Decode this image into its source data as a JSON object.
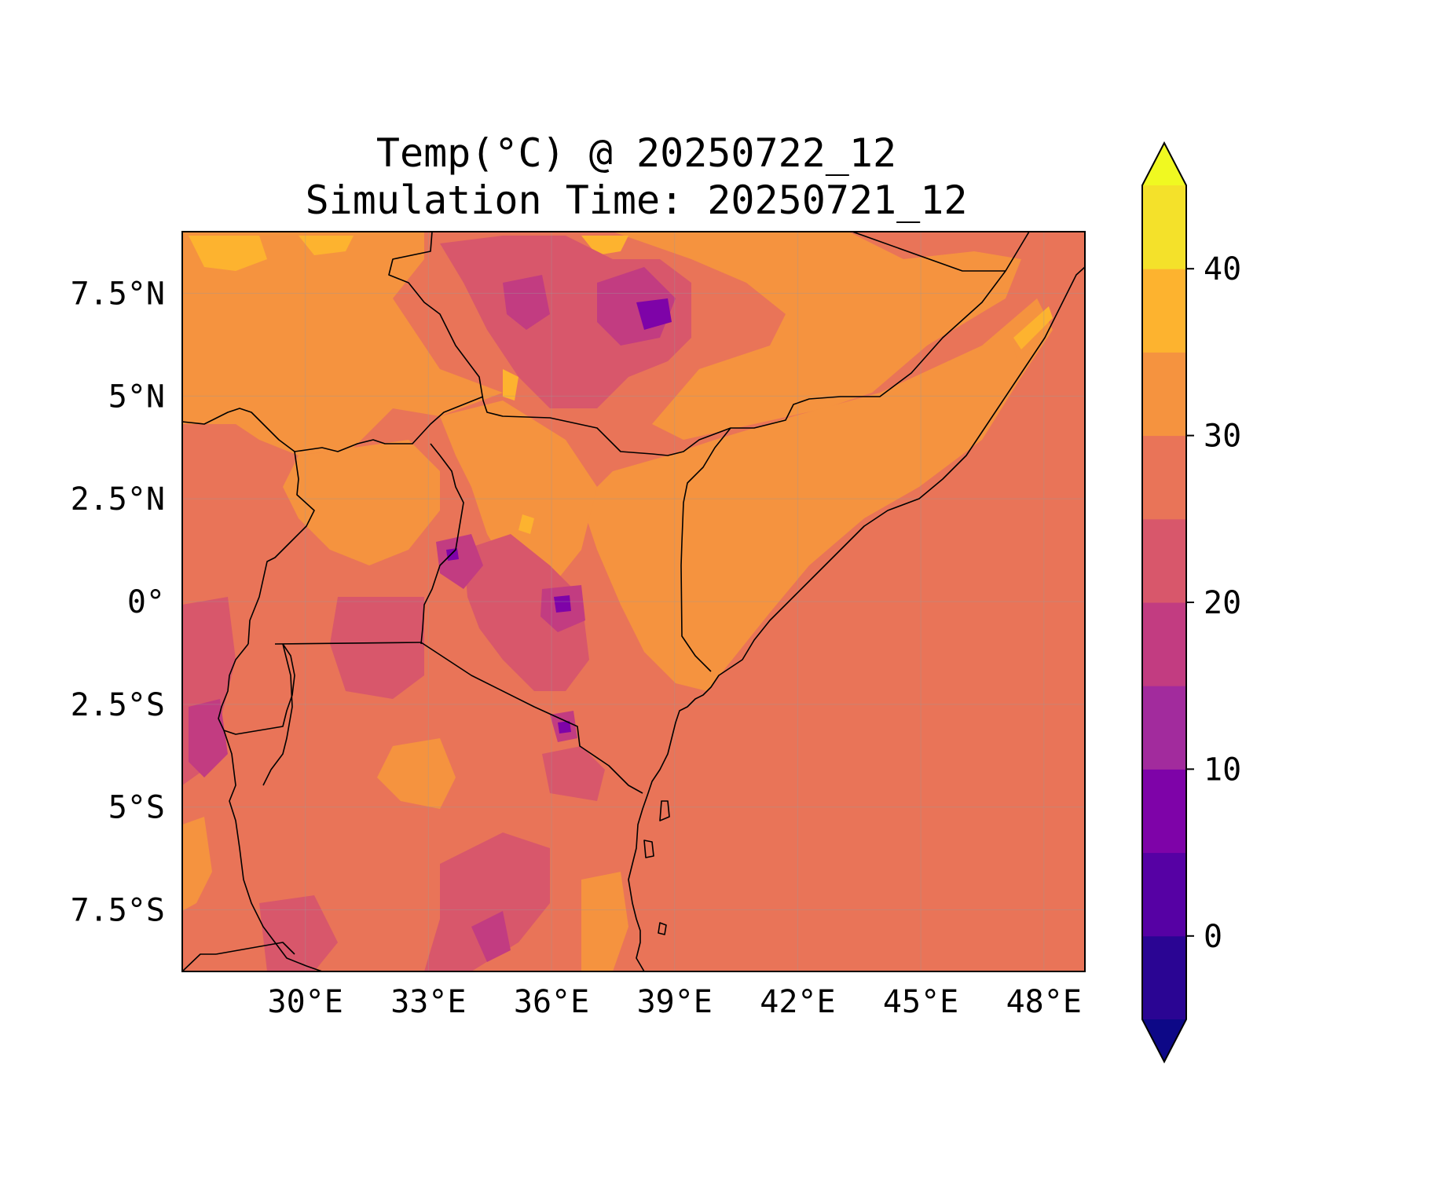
{
  "title": {
    "line1": "Temp(°C) @ 20250722_12",
    "line2": "Simulation Time: 20250721_12"
  },
  "map": {
    "extent": {
      "lon": [
        27.0,
        49.0
      ],
      "lat": [
        -9.0,
        9.0
      ]
    },
    "lon_ticks": [
      {
        "value": 30,
        "label": "30°E"
      },
      {
        "value": 33,
        "label": "33°E"
      },
      {
        "value": 36,
        "label": "36°E"
      },
      {
        "value": 39,
        "label": "39°E"
      },
      {
        "value": 42,
        "label": "42°E"
      },
      {
        "value": 45,
        "label": "45°E"
      },
      {
        "value": 48,
        "label": "48°E"
      }
    ],
    "lat_ticks": [
      {
        "value": 7.5,
        "label": "7.5°N"
      },
      {
        "value": 5,
        "label": "5°N"
      },
      {
        "value": 2.5,
        "label": "2.5°N"
      },
      {
        "value": 0,
        "label": "0°"
      },
      {
        "value": -2.5,
        "label": "2.5°S"
      },
      {
        "value": -5,
        "label": "5°S"
      },
      {
        "value": -7.5,
        "label": "7.5°S"
      }
    ],
    "gridlines": true,
    "background_level_color": "#e97458"
  },
  "colorbar": {
    "levels": [
      -5,
      0,
      5,
      10,
      15,
      20,
      25,
      30,
      35,
      40,
      45
    ],
    "colors": [
      "#2a0593",
      "#5601a4",
      "#7e03a8",
      "#a22b9d",
      "#c23c81",
      "#d8576b",
      "#e97458",
      "#f5933f",
      "#fdb32f",
      "#f4e12a"
    ],
    "under_color": "#0d0887",
    "over_color": "#f0f921",
    "tick_labels": [
      {
        "value": 0,
        "label": "0"
      },
      {
        "value": 10,
        "label": "10"
      },
      {
        "value": 20,
        "label": "20"
      },
      {
        "value": 30,
        "label": "30"
      },
      {
        "value": 40,
        "label": "40"
      }
    ],
    "extend": "both"
  }
}
